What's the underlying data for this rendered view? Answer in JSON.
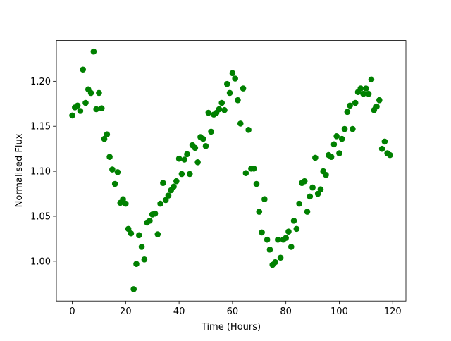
{
  "chart_data": {
    "type": "scatter",
    "xlabel": "Time (Hours)",
    "ylabel": "Normalised Flux",
    "color": "#008000",
    "x": [
      0,
      1,
      2,
      3,
      4,
      5,
      6,
      7,
      8,
      9,
      10,
      11,
      12,
      13,
      14,
      15,
      16,
      17,
      18,
      19,
      20,
      21,
      22,
      23,
      24,
      25,
      26,
      27,
      28,
      29,
      30,
      31,
      32,
      33,
      34,
      35,
      36,
      37,
      38,
      39,
      40,
      41,
      42,
      43,
      44,
      45,
      46,
      47,
      48,
      49,
      50,
      51,
      52,
      53,
      54,
      55,
      56,
      57,
      58,
      59,
      60,
      61,
      62,
      63,
      64,
      65,
      66,
      67,
      68,
      69,
      70,
      71,
      72,
      73,
      74,
      75,
      76,
      77,
      78,
      79,
      80,
      81,
      82,
      83,
      84,
      85,
      86,
      87,
      88,
      89,
      90,
      91,
      92,
      93,
      94,
      95,
      96,
      97,
      98,
      99,
      100,
      101,
      102,
      103,
      104,
      105,
      106,
      107,
      108,
      109,
      110,
      111,
      112,
      113,
      114,
      115,
      116,
      117,
      118,
      119
    ],
    "values": [
      1.162,
      1.171,
      1.173,
      1.167,
      1.213,
      1.176,
      1.191,
      1.187,
      1.233,
      1.169,
      1.187,
      1.17,
      1.136,
      1.141,
      1.116,
      1.102,
      1.086,
      1.099,
      1.065,
      1.069,
      1.064,
      1.036,
      1.031,
      0.969,
      0.997,
      1.029,
      1.016,
      1.002,
      1.043,
      1.045,
      1.052,
      1.053,
      1.03,
      1.064,
      1.087,
      1.068,
      1.073,
      1.079,
      1.083,
      1.089,
      1.114,
      1.097,
      1.113,
      1.119,
      1.097,
      1.129,
      1.126,
      1.11,
      1.138,
      1.136,
      1.128,
      1.165,
      1.144,
      1.163,
      1.165,
      1.169,
      1.176,
      1.168,
      1.197,
      1.187,
      1.209,
      1.203,
      1.179,
      1.153,
      1.192,
      1.098,
      1.146,
      1.103,
      1.103,
      1.086,
      1.055,
      1.032,
      1.069,
      1.024,
      1.013,
      0.996,
      0.999,
      1.024,
      1.004,
      1.024,
      1.026,
      1.033,
      1.016,
      1.045,
      1.036,
      1.064,
      1.087,
      1.089,
      1.055,
      1.072,
      1.082,
      1.115,
      1.075,
      1.08,
      1.1,
      1.096,
      1.118,
      1.116,
      1.13,
      1.139,
      1.12,
      1.136,
      1.147,
      1.166,
      1.173,
      1.147,
      1.176,
      1.188,
      1.192,
      1.186,
      1.192,
      1.186,
      1.202,
      1.168,
      1.172,
      1.179,
      1.125,
      1.133,
      1.12,
      1.118
    ],
    "xlim": [
      -5.95,
      124.95
    ],
    "xticks": [
      0,
      20,
      40,
      60,
      80,
      100,
      120
    ],
    "ylim": [
      0.9559,
      1.2452
    ],
    "yticks": [
      {
        "value": 1.0,
        "label": "1.00"
      },
      1.05,
      {
        "value": 1.1,
        "label": "1.10"
      },
      1.15,
      {
        "value": 1.2,
        "label": "1.20"
      }
    ]
  }
}
